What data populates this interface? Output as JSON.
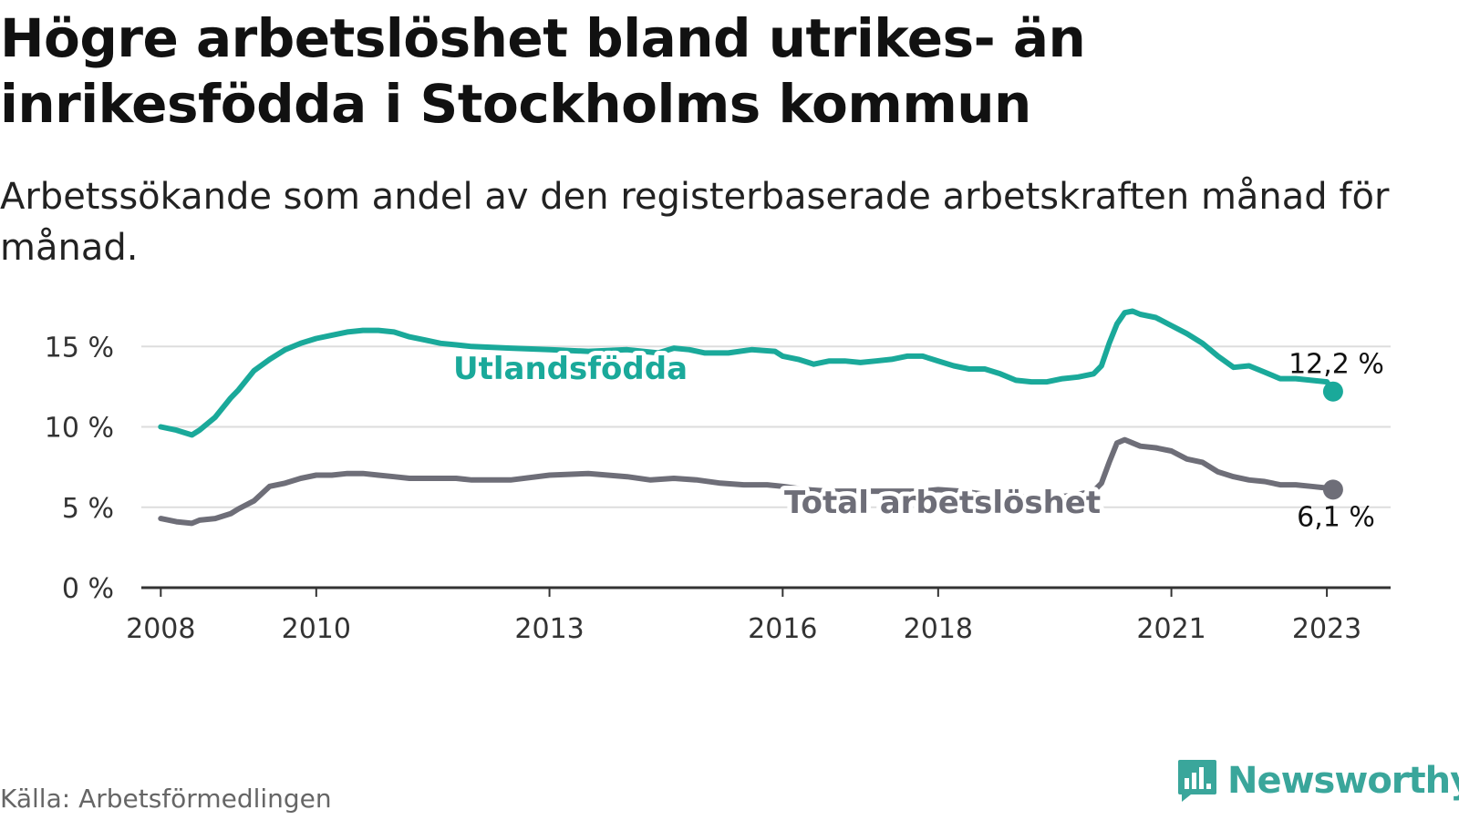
{
  "header": {
    "title": "Högre arbetslöshet bland utrikes- än inrikesfödda i Stockholms kommun",
    "subtitle": "Arbetssökande som andel av den registerbaserade arbetskraften månad för månad."
  },
  "footer": {
    "source": "Källa: Arbetsförmedlingen",
    "brand": "Newsworthy"
  },
  "colors": {
    "foreign": "#1aa99a",
    "total": "#6e6e78",
    "grid": "#dddddd",
    "axis": "#333333"
  },
  "chart_data": {
    "type": "line",
    "title": "Högre arbetslöshet bland utrikes- än inrikesfödda i Stockholms kommun",
    "subtitle": "Arbetssökande som andel av den registerbaserade arbetskraften månad för månad.",
    "xlabel": "",
    "ylabel": "",
    "xlim": [
      2007.75,
      2023.82
    ],
    "ylim": [
      0,
      17
    ],
    "x_ticks": [
      2008,
      2010,
      2013,
      2016,
      2018,
      2021,
      2023
    ],
    "x_tick_labels": [
      "2008",
      "2010",
      "2013",
      "2016",
      "2018",
      "2021",
      "2023"
    ],
    "y_ticks": [
      0,
      5,
      10,
      15
    ],
    "y_tick_labels": [
      "0 %",
      "5 %",
      "10 %",
      "15 %"
    ],
    "series": [
      {
        "name": "Utlandsfödda",
        "label": "Utlandsfödda",
        "end_label": "12,2 %",
        "x": [
          2008.0,
          2008.2,
          2008.4,
          2008.5,
          2008.7,
          2008.9,
          2009.0,
          2009.2,
          2009.4,
          2009.6,
          2009.8,
          2010.0,
          2010.2,
          2010.4,
          2010.6,
          2010.8,
          2011.0,
          2011.2,
          2011.4,
          2011.6,
          2011.8,
          2012.0,
          2012.5,
          2013.0,
          2013.5,
          2014.0,
          2014.4,
          2014.6,
          2014.8,
          2015.0,
          2015.3,
          2015.6,
          2015.9,
          2016.0,
          2016.2,
          2016.4,
          2016.6,
          2016.8,
          2017.0,
          2017.2,
          2017.4,
          2017.6,
          2017.8,
          2018.0,
          2018.2,
          2018.4,
          2018.6,
          2018.8,
          2019.0,
          2019.2,
          2019.4,
          2019.6,
          2019.8,
          2020.0,
          2020.1,
          2020.2,
          2020.3,
          2020.4,
          2020.5,
          2020.6,
          2020.8,
          2021.0,
          2021.2,
          2021.4,
          2021.6,
          2021.8,
          2022.0,
          2022.2,
          2022.4,
          2022.6,
          2022.8,
          2023.0,
          2023.08
        ],
        "values": [
          10.0,
          9.8,
          9.5,
          9.8,
          10.6,
          11.8,
          12.3,
          13.5,
          14.2,
          14.8,
          15.2,
          15.5,
          15.7,
          15.9,
          16.0,
          16.0,
          15.9,
          15.6,
          15.4,
          15.2,
          15.1,
          15.0,
          14.9,
          14.8,
          14.7,
          14.8,
          14.6,
          14.9,
          14.8,
          14.6,
          14.6,
          14.8,
          14.7,
          14.4,
          14.2,
          13.9,
          14.1,
          14.1,
          14.0,
          14.1,
          14.2,
          14.4,
          14.4,
          14.1,
          13.8,
          13.6,
          13.6,
          13.3,
          12.9,
          12.8,
          12.8,
          13.0,
          13.1,
          13.3,
          13.8,
          15.2,
          16.4,
          17.1,
          17.2,
          17.0,
          16.8,
          16.3,
          15.8,
          15.2,
          14.4,
          13.7,
          13.8,
          13.4,
          13.0,
          13.0,
          12.9,
          12.8,
          12.2
        ]
      },
      {
        "name": "Total arbetslöshet",
        "label": "Total arbetslöshet",
        "end_label": "6,1 %",
        "x": [
          2008.0,
          2008.2,
          2008.4,
          2008.5,
          2008.7,
          2008.9,
          2009.0,
          2009.2,
          2009.4,
          2009.6,
          2009.8,
          2010.0,
          2010.2,
          2010.4,
          2010.6,
          2010.8,
          2011.0,
          2011.2,
          2011.4,
          2011.6,
          2011.8,
          2012.0,
          2012.5,
          2013.0,
          2013.5,
          2014.0,
          2014.3,
          2014.6,
          2014.9,
          2015.2,
          2015.5,
          2015.8,
          2016.0,
          2016.3,
          2016.6,
          2016.9,
          2017.2,
          2017.5,
          2017.8,
          2018.0,
          2018.3,
          2018.6,
          2018.9,
          2019.2,
          2019.5,
          2019.8,
          2020.0,
          2020.1,
          2020.2,
          2020.3,
          2020.4,
          2020.5,
          2020.6,
          2020.8,
          2021.0,
          2021.2,
          2021.4,
          2021.6,
          2021.8,
          2022.0,
          2022.2,
          2022.4,
          2022.6,
          2022.8,
          2023.0,
          2023.08
        ],
        "values": [
          4.3,
          4.1,
          4.0,
          4.2,
          4.3,
          4.6,
          4.9,
          5.4,
          6.3,
          6.5,
          6.8,
          7.0,
          7.0,
          7.1,
          7.1,
          7.0,
          6.9,
          6.8,
          6.8,
          6.8,
          6.8,
          6.7,
          6.7,
          7.0,
          7.1,
          6.9,
          6.7,
          6.8,
          6.7,
          6.5,
          6.4,
          6.4,
          6.3,
          6.1,
          6.0,
          6.0,
          6.0,
          6.0,
          6.0,
          6.1,
          6.0,
          5.8,
          5.7,
          5.6,
          5.6,
          5.8,
          6.0,
          6.5,
          7.8,
          9.0,
          9.2,
          9.0,
          8.8,
          8.7,
          8.5,
          8.0,
          7.8,
          7.2,
          6.9,
          6.7,
          6.6,
          6.4,
          6.4,
          6.3,
          6.2,
          6.1
        ]
      }
    ],
    "legend": "inline-labels"
  }
}
